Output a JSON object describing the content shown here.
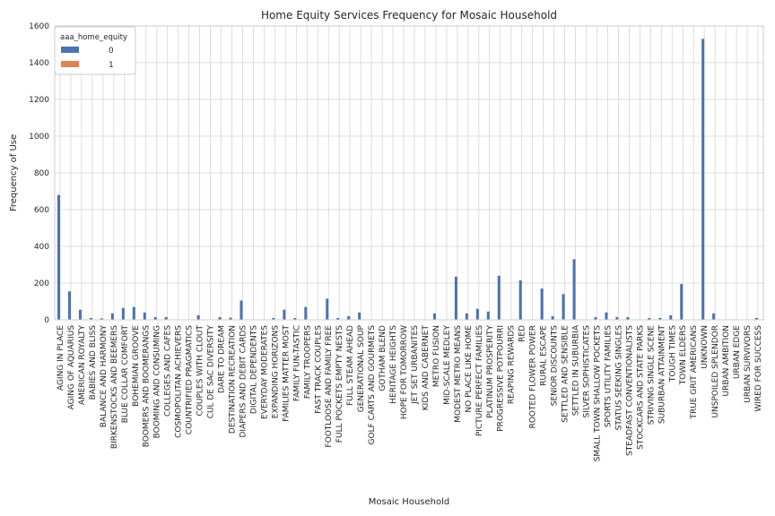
{
  "chart_data": {
    "type": "bar",
    "title": "Home Equity Services Frequency for Mosaic Household",
    "xlabel": "Mosaic Household",
    "ylabel": "Frequency of Use",
    "ylim": [
      0,
      1600
    ],
    "yticks": [
      0,
      200,
      400,
      600,
      800,
      1000,
      1200,
      1400,
      1600
    ],
    "grid": true,
    "legend": {
      "title": "aaa_home_equity",
      "position": "top-left"
    },
    "categories": [
      "AGING IN PLACE",
      "AGING OF AQUARIUS",
      "AMERICAN ROYALTY",
      "BABIES AND BLISS",
      "BALANCE AND HARMONY",
      "BIRKENSTOCKS AND BEEMERS",
      "BLUE COLLAR COMFORT",
      "BOHEMIAN GROOVE",
      "BOOMERS AND BOOMERANGS",
      "BOOMING AND CONSUMING",
      "COLLEGES AND CAFES",
      "COSMOPOLITAN ACHIEVERS",
      "COUNTRIFIED PRAGMATICS",
      "COUPLES WITH CLOUT",
      "CUL DE SAC DIVERSITY",
      "DARE TO DREAM",
      "DESTINATION RECREATION",
      "DIAPERS AND DEBIT CARDS",
      "DIGITAL DEPENDENTS",
      "EVERYDAY MODERATES",
      "EXPANDING HORIZONS",
      "FAMILIES MATTER MOST",
      "FAMILY FUN-TASTIC",
      "FAMILY TROOPERS",
      "FAST TRACK COUPLES",
      "FOOTLOOSE AND FAMILY FREE",
      "FULL POCKETS  EMPTY NESTS",
      "FULL STEAM AHEAD",
      "GENERATIONAL SOUP",
      "GOLF CARTS AND GOURMETS",
      "GOTHAM BLEND",
      "HERITAGE HEIGHTS",
      "HOPE FOR TOMORROW",
      "JET SET URBANITES",
      "KIDS AND CABERNET",
      "METRO FUSION",
      "MID-SCALE MEDLEY",
      "MODEST METRO MEANS",
      "NO PLACE LIKE HOME",
      "PICTURE PERFECT FAMILIES",
      "PLATINUM PROSPERITY",
      "PROGRESSIVE POTPOURRI",
      "REAPING REWARDS",
      "RED",
      "ROOTED FLOWER POWER",
      "RURAL ESCAPE",
      "SENIOR DISCOUNTS",
      "SETTLED AND SENSIBLE",
      "SETTLED IN SUBURBIA",
      "SILVER SOPHISTICATES",
      "SMALL TOWN SHALLOW POCKETS",
      "SPORTS UTILITY FAMILIES",
      "STATUS SEEKING SINGLES",
      "STEADFAST CONVENTIONALISTS",
      "STOCKCARS AND STATE PARKS",
      "STRIVING SINGLE SCENE",
      "SUBURBAN ATTAINMENT",
      "TOUGH TIMES",
      "TOWN ELDERS",
      "TRUE GRIT AMERICANS",
      "UNKNOWN",
      "UNSPOILED SPLENDOR",
      "URBAN AMBITION",
      "URBAN EDGE",
      "URBAN SURVIVORS",
      "WIRED FOR SUCCESS"
    ],
    "series": [
      {
        "name": "0",
        "color": "#4c72b0",
        "values": [
          680,
          155,
          55,
          10,
          8,
          35,
          65,
          70,
          40,
          15,
          15,
          0,
          0,
          25,
          0,
          15,
          12,
          105,
          0,
          0,
          10,
          55,
          10,
          70,
          0,
          115,
          10,
          20,
          40,
          0,
          0,
          0,
          0,
          0,
          0,
          35,
          0,
          235,
          35,
          60,
          45,
          240,
          0,
          215,
          0,
          170,
          20,
          140,
          330,
          0,
          15,
          40,
          15,
          15,
          0,
          10,
          10,
          25,
          195,
          0,
          1530,
          35,
          0,
          0,
          0,
          10
        ]
      },
      {
        "name": "1",
        "color": "#dd8452",
        "values": [
          0,
          0,
          0,
          0,
          0,
          0,
          0,
          0,
          0,
          0,
          0,
          0,
          0,
          0,
          0,
          0,
          0,
          0,
          0,
          0,
          0,
          0,
          0,
          0,
          0,
          0,
          0,
          0,
          0,
          0,
          0,
          0,
          0,
          0,
          0,
          0,
          0,
          0,
          0,
          0,
          0,
          0,
          0,
          0,
          0,
          0,
          0,
          0,
          0,
          0,
          0,
          0,
          0,
          0,
          0,
          0,
          0,
          0,
          0,
          0,
          0,
          0,
          0,
          0,
          0,
          0
        ]
      }
    ]
  }
}
